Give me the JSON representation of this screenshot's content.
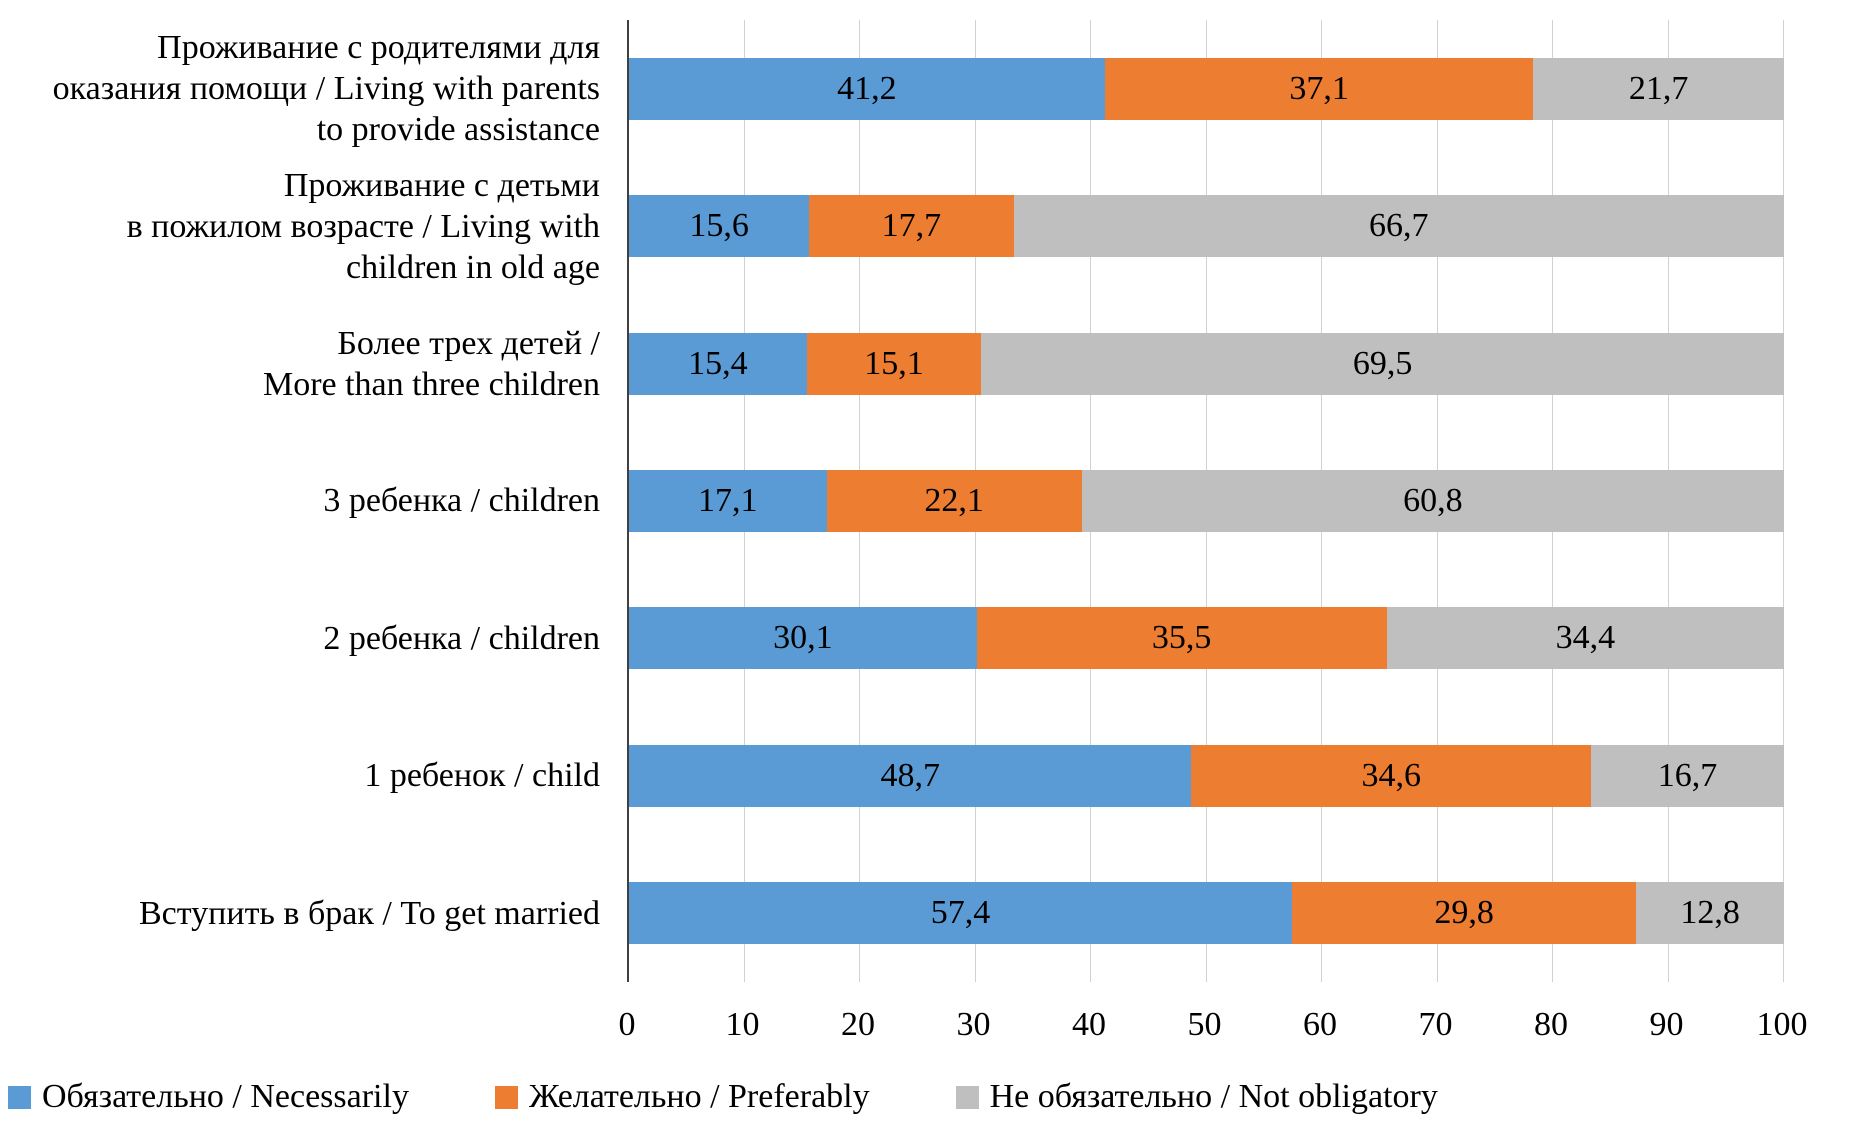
{
  "chart_data": {
    "type": "bar",
    "orientation": "horizontal",
    "stacked": true,
    "grid": true,
    "legend_position": "bottom-left",
    "xlim": [
      0,
      100
    ],
    "x_ticks": [
      0,
      10,
      20,
      30,
      40,
      50,
      60,
      70,
      80,
      90,
      100
    ],
    "categories": [
      "Проживание с родителями для оказания помощи / Living with parents to provide assistance",
      "Проживание с детьми в пожилом возрасте / Living with children in old age",
      "Более трех детей / More than three children",
      "3 ребенка / children",
      "2 ребенка / children",
      "1 ребенок / child",
      "Вступить в брак / To get married"
    ],
    "category_lines": [
      [
        "Проживание с родителями для",
        "оказания помощи / Living with parents",
        "to provide assistance"
      ],
      [
        "Проживание с детьми",
        "в пожилом возрасте / Living with",
        "children in old age"
      ],
      [
        "Более трех детей  /",
        "More than three children"
      ],
      [
        "3 ребенка / children"
      ],
      [
        "2 ребенка / children"
      ],
      [
        "1 ребенок / child"
      ],
      [
        "Вступить в брак / To get married"
      ]
    ],
    "series": [
      {
        "name": "Обязательно / Necessarily",
        "color": "#5B9BD5",
        "values": [
          41.2,
          15.6,
          15.4,
          17.1,
          30.1,
          48.7,
          57.4
        ]
      },
      {
        "name": "Желательно / Preferably",
        "color": "#ED7D31",
        "values": [
          37.1,
          17.7,
          15.1,
          22.1,
          35.5,
          34.6,
          29.8
        ]
      },
      {
        "name": "Не обязательно / Not obligatory",
        "color": "#BFBFBF",
        "values": [
          21.7,
          66.7,
          69.5,
          60.8,
          34.4,
          16.7,
          12.8
        ]
      }
    ],
    "value_labels": [
      [
        "41,2",
        "37,1",
        "21,7"
      ],
      [
        "15,6",
        "17,7",
        "66,7"
      ],
      [
        "15,4",
        "15,1",
        "69,5"
      ],
      [
        "17,1",
        "22,1",
        "60,8"
      ],
      [
        "30,1",
        "35,5",
        "34,4"
      ],
      [
        "48,7",
        "34,6",
        "16,7"
      ],
      [
        "57,4",
        "29,8",
        "12,8"
      ]
    ]
  }
}
